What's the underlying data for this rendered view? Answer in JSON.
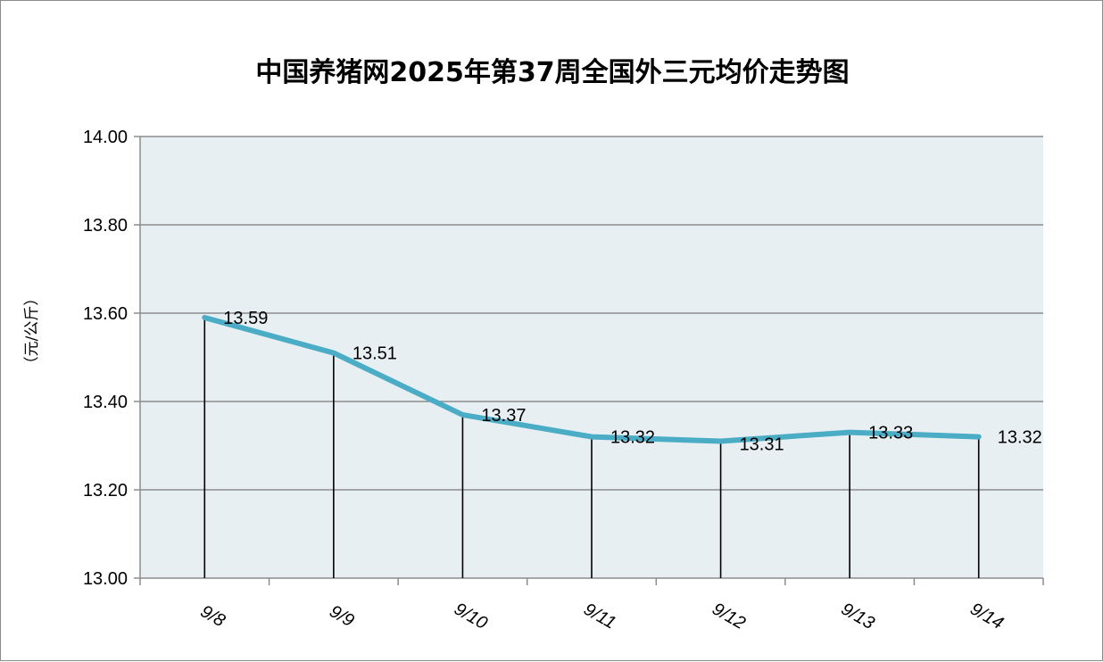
{
  "chart_data": {
    "type": "line",
    "title": "中国养猪网2025年第37周全国外三元均价走势图",
    "xlabel": "",
    "ylabel": "（元/公斤）",
    "categories": [
      "9/8",
      "9/9",
      "9/10",
      "9/11",
      "9/12",
      "9/13",
      "9/14"
    ],
    "series": [
      {
        "values": [
          13.59,
          13.51,
          13.37,
          13.32,
          13.31,
          13.33,
          13.32
        ],
        "data_labels": [
          "13.59",
          "13.51",
          "13.37",
          "13.32",
          "13.31",
          "13.33",
          "13.32"
        ]
      }
    ],
    "ylim": [
      13.0,
      14.0
    ],
    "yticks": [
      "13.00",
      "13.20",
      "13.40",
      "13.60",
      "13.80",
      "14.00"
    ],
    "grid": "horizontal",
    "drop_lines": true,
    "legend": "none"
  },
  "colors": {
    "plot_background": "#e8eff2",
    "line": "#4bacc6",
    "gridline": "#8c8c8c",
    "drop_line": "#000000"
  }
}
